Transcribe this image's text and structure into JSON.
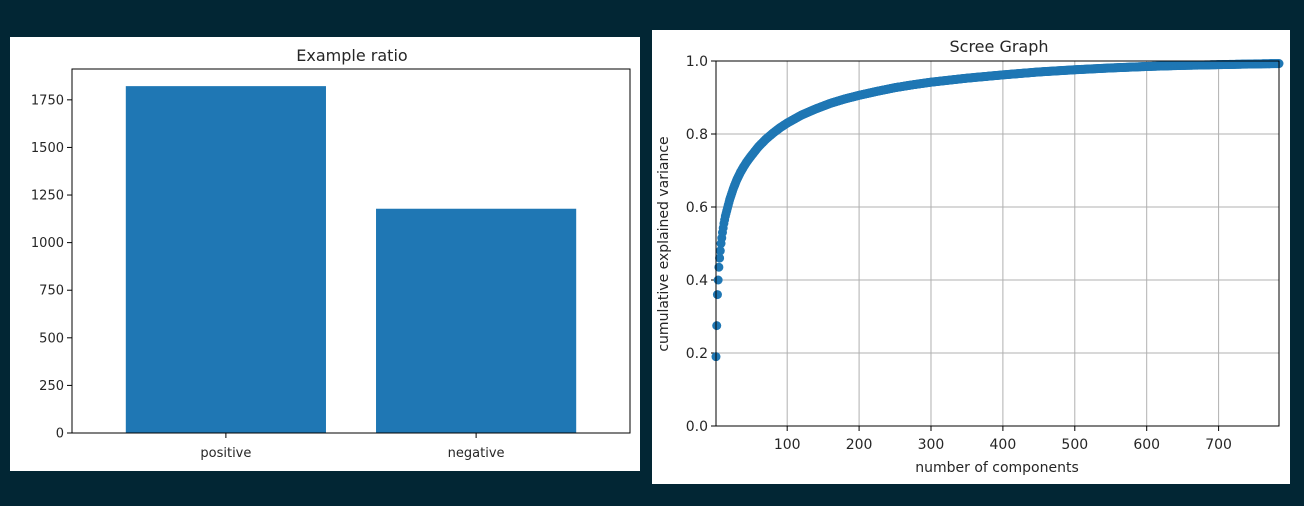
{
  "colors": {
    "page_bg": "#022634",
    "bar": "#1f77b4",
    "scatter": "#1f77b4",
    "grid": "#b0b0b0",
    "axis": "#000000"
  },
  "chart_data": [
    {
      "type": "bar",
      "title": "Example ratio",
      "xlabel": "",
      "ylabel": "",
      "categories": [
        "positive",
        "negative"
      ],
      "values": [
        1822,
        1178
      ],
      "ylim": [
        0,
        1912
      ],
      "yticks": [
        0,
        250,
        500,
        750,
        1000,
        1250,
        1500,
        1750
      ],
      "grid": false,
      "legend": "none"
    },
    {
      "type": "scatter",
      "title": "Scree Graph",
      "xlabel": "number of components",
      "ylabel": "cumulative explained variance",
      "xlim": [
        1,
        784
      ],
      "ylim": [
        0,
        1.0
      ],
      "xticks": [
        100,
        200,
        300,
        400,
        500,
        600,
        700
      ],
      "yticks": [
        0.0,
        0.2,
        0.4,
        0.6,
        0.8,
        1.0
      ],
      "ytick_labels": [
        "0.0",
        "0.2",
        "0.4",
        "0.6",
        "0.8",
        "1.0"
      ],
      "grid": true,
      "legend": "none",
      "x": [
        1,
        2,
        3,
        4,
        5,
        6,
        7,
        8,
        9,
        10,
        12,
        14,
        16,
        18,
        20,
        25,
        30,
        35,
        40,
        45,
        50,
        60,
        70,
        80,
        90,
        100,
        120,
        140,
        160,
        180,
        200,
        225,
        250,
        275,
        300,
        350,
        400,
        450,
        500,
        550,
        600,
        650,
        700,
        750,
        784
      ],
      "y": [
        0.19,
        0.275,
        0.36,
        0.4,
        0.435,
        0.46,
        0.48,
        0.5,
        0.515,
        0.53,
        0.555,
        0.575,
        0.59,
        0.605,
        0.62,
        0.65,
        0.675,
        0.695,
        0.712,
        0.727,
        0.74,
        0.765,
        0.785,
        0.802,
        0.817,
        0.83,
        0.852,
        0.869,
        0.884,
        0.896,
        0.906,
        0.917,
        0.927,
        0.935,
        0.942,
        0.953,
        0.962,
        0.97,
        0.976,
        0.981,
        0.985,
        0.988,
        0.99,
        0.992,
        0.993
      ]
    }
  ]
}
